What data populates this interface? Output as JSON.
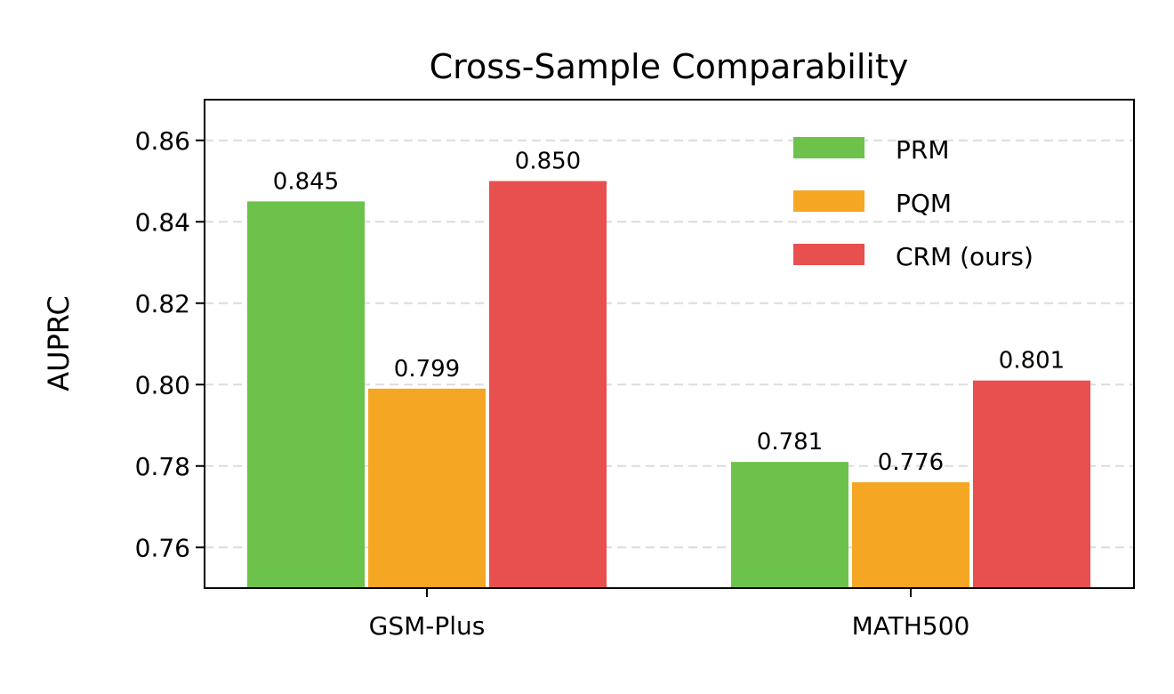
{
  "chart_data": {
    "type": "bar",
    "title": "Cross-Sample Comparability",
    "xlabel": "",
    "ylabel": "AUPRC",
    "categories": [
      "GSM-Plus",
      "MATH500"
    ],
    "series": [
      {
        "name": "PRM",
        "color": "#6cc24a",
        "values": [
          0.845,
          0.781
        ],
        "labels": [
          "0.845",
          "0.781"
        ]
      },
      {
        "name": "PQM",
        "color": "#f5a623",
        "values": [
          0.799,
          0.776
        ],
        "labels": [
          "0.799",
          "0.776"
        ]
      },
      {
        "name": "CRM (ours)",
        "color": "#e84f4f",
        "values": [
          0.85,
          0.801
        ],
        "labels": [
          "0.850",
          "0.801"
        ]
      }
    ],
    "ylim": [
      0.75,
      0.87
    ],
    "yticks": [
      0.76,
      0.78,
      0.8,
      0.82,
      0.84,
      0.86
    ],
    "ytick_labels": [
      "0.76",
      "0.78",
      "0.80",
      "0.82",
      "0.84",
      "0.86"
    ],
    "grid": "y, dashed, light gray",
    "legend_position": "upper right"
  }
}
